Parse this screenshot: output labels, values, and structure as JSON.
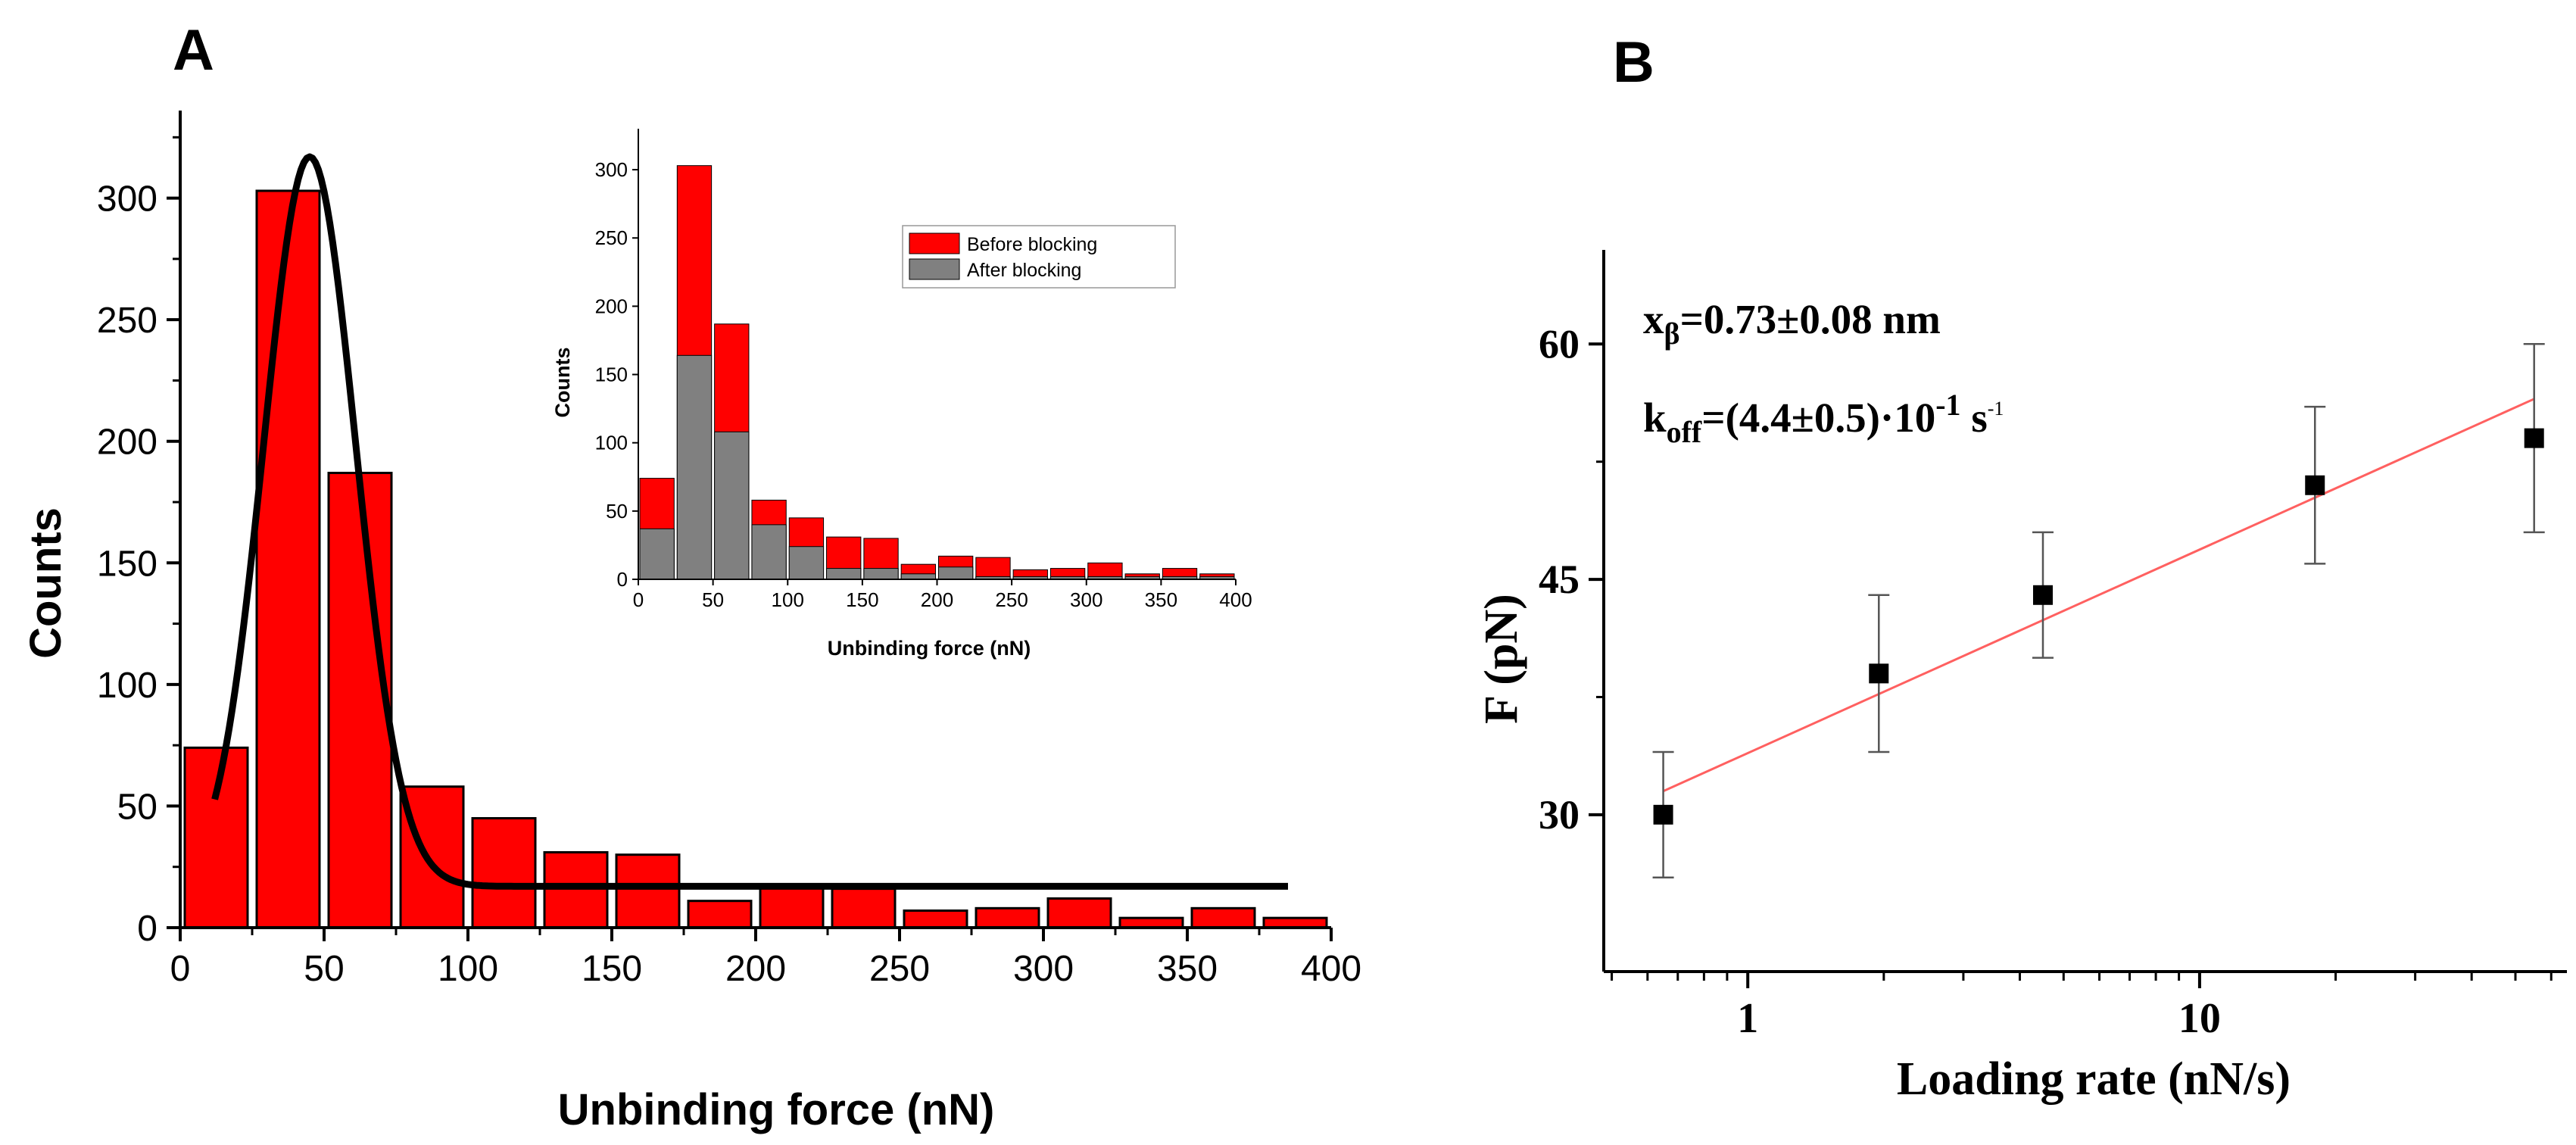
{
  "colors": {
    "bar_red": "#ff0000",
    "bar_gray": "#808080",
    "axis": "#000000",
    "fit_line": "#000000",
    "regression_line": "#ff6060",
    "point": "#000000",
    "errorbar": "#555555"
  },
  "panel_a": {
    "label": "A",
    "chart_data": {
      "type": "bar",
      "xlabel": "Unbinding force (nN)",
      "ylabel": "Counts",
      "xlim": [
        0,
        400
      ],
      "ylim": [
        0,
        320
      ],
      "xticks": [
        "0",
        "50",
        "100",
        "150",
        "200",
        "250",
        "300",
        "350",
        "400"
      ],
      "yticks": [
        "0",
        "50",
        "100",
        "150",
        "200",
        "250",
        "300"
      ],
      "bin_width": 25,
      "categories": [
        12.5,
        37.5,
        62.5,
        87.5,
        112.5,
        137.5,
        162.5,
        187.5,
        212.5,
        237.5,
        262.5,
        287.5,
        312.5,
        337.5,
        362.5,
        387.5
      ],
      "values": [
        74,
        303,
        187,
        58,
        45,
        31,
        30,
        11,
        17,
        16,
        7,
        8,
        12,
        4,
        8,
        4
      ],
      "fit": {
        "type": "gaussian",
        "baseline": 17,
        "amplitude": 300,
        "center": 45,
        "sigma": 16,
        "x_range": [
          12,
          385
        ]
      }
    }
  },
  "inset": {
    "chart_data": {
      "type": "bar",
      "xlabel": "Unbinding force (nN)",
      "ylabel": "Counts",
      "xlim": [
        0,
        400
      ],
      "ylim": [
        0,
        320
      ],
      "xticks": [
        "0",
        "50",
        "100",
        "150",
        "200",
        "250",
        "300",
        "350",
        "400"
      ],
      "yticks": [
        "0",
        "50",
        "100",
        "150",
        "200",
        "250",
        "300"
      ],
      "legend_position": "top-right",
      "categories": [
        12.5,
        37.5,
        62.5,
        87.5,
        112.5,
        137.5,
        162.5,
        187.5,
        212.5,
        237.5,
        262.5,
        287.5,
        312.5,
        337.5,
        362.5,
        387.5
      ],
      "series": [
        {
          "name": "Before blocking",
          "values": [
            74,
            303,
            187,
            58,
            45,
            31,
            30,
            11,
            17,
            16,
            7,
            8,
            12,
            4,
            8,
            4
          ]
        },
        {
          "name": "After blocking",
          "values": [
            37,
            164,
            108,
            40,
            24,
            8,
            8,
            4,
            9,
            2,
            2,
            2,
            2,
            2,
            2,
            2
          ]
        }
      ]
    }
  },
  "panel_b": {
    "label": "B",
    "annotation_x": {
      "main": "x",
      "sub": "β",
      "rest": "=0.73±0.08 nm"
    },
    "annotation_k": {
      "main": "k",
      "sub": "off",
      "rest": "=(4.4±0.5)·10",
      "exp": "-1",
      "tail": " s",
      "tail_exp": "-1"
    },
    "chart_data": {
      "type": "scatter",
      "xscale": "log",
      "xlabel": "Loading rate (nN/s)",
      "ylabel": "F (pN)",
      "xlim": [
        0.48,
        65
      ],
      "ylim": [
        20,
        66
      ],
      "xticks": [
        "1",
        "10"
      ],
      "yticks": [
        "30",
        "45",
        "60"
      ],
      "x": [
        0.65,
        1.95,
        4.5,
        18,
        55
      ],
      "y": [
        30,
        39,
        44,
        51,
        54
      ],
      "yerr_low": [
        26,
        34,
        40,
        46,
        48
      ],
      "yerr_high": [
        34,
        44,
        48,
        56,
        60
      ],
      "fit": {
        "type": "linear_log",
        "x_range": [
          0.65,
          55
        ],
        "y_range": [
          31.5,
          56.5
        ]
      }
    }
  }
}
